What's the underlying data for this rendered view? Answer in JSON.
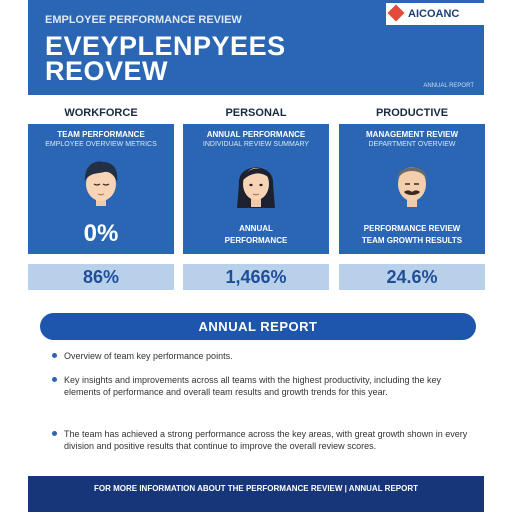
{
  "header": {
    "kicker": "EMPLOYEE PERFORMANCE REVIEW",
    "title_line1": "EVEYPLENPYEES",
    "title_line2": "REOVEW",
    "sub": "ANNUAL REPORT"
  },
  "brand": {
    "name": "AICOANC",
    "accent": "#e24a3b"
  },
  "columns": [
    {
      "label": "WORKFORCE",
      "cap1": "TEAM PERFORMANCE",
      "cap2": "EMPLOYEE OVERVIEW METRICS",
      "big": "0%",
      "meta1": "",
      "meta2": "",
      "stat": "86%"
    },
    {
      "label": "PERSONAL",
      "cap1": "ANNUAL PERFORMANCE",
      "cap2": "INDIVIDUAL REVIEW SUMMARY",
      "big": "",
      "meta1": "ANNUAL",
      "meta2": "PERFORMANCE",
      "stat": "1,466%"
    },
    {
      "label": "PRODUCTIVE",
      "cap1": "MANAGEMENT REVIEW",
      "cap2": "DEPARTMENT OVERVIEW",
      "big": "",
      "meta1": "PERFORMANCE REVIEW",
      "meta2": "TEAM GROWTH RESULTS",
      "stat": "24.6%"
    }
  ],
  "section": {
    "title": "ANNUAL REPORT"
  },
  "bullets": [
    "Overview of team key performance points.",
    "Key insights and improvements across all teams with the highest productivity, including the key elements of performance and overall team results and growth trends for this year.",
    "The team has achieved a strong performance across the key areas, with great growth shown in every division and positive results that continue to improve the overall review scores."
  ],
  "footer": {
    "text": "FOR MORE INFORMATION ABOUT THE PERFORMANCE REVIEW  |  ANNUAL REPORT"
  },
  "colors": {
    "primary": "#2a66b4",
    "dark": "#17367a",
    "light": "#b9d0ea"
  }
}
